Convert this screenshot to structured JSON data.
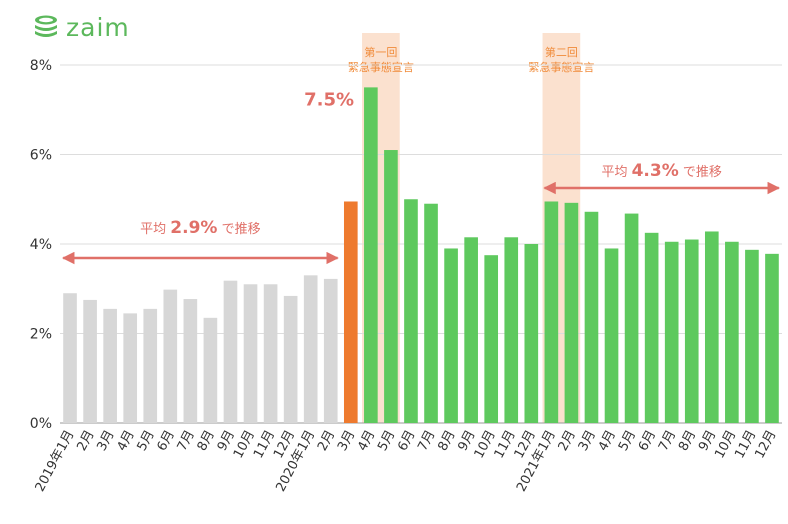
{
  "brand": {
    "name": "zaim",
    "logo_icon": "stacked-coins-icon"
  },
  "colors": {
    "pre": "#d7d7d7",
    "march2020": "#ee7a2e",
    "post": "#5ec95e",
    "emergency_band": "#fbe1cf",
    "emergency_text": "#f08b3a",
    "avg_arrow": "#e07068",
    "axis_text": "#333333",
    "grid": "#dddddd"
  },
  "chart_data": {
    "type": "bar",
    "categories": [
      "2019年1月",
      "2月",
      "3月",
      "4月",
      "5月",
      "6月",
      "7月",
      "8月",
      "9月",
      "10月",
      "11月",
      "12月",
      "2020年1月",
      "2月",
      "3月",
      "4月",
      "5月",
      "6月",
      "7月",
      "8月",
      "9月",
      "10月",
      "11月",
      "12月",
      "2021年1月",
      "2月",
      "3月",
      "4月",
      "5月",
      "6月",
      "7月",
      "8月",
      "9月",
      "10月",
      "11月",
      "12月"
    ],
    "values": [
      2.9,
      2.75,
      2.55,
      2.45,
      2.55,
      2.98,
      2.77,
      2.35,
      3.18,
      3.1,
      3.1,
      2.84,
      3.3,
      3.22,
      4.95,
      7.5,
      6.1,
      5.0,
      4.9,
      3.9,
      4.15,
      3.75,
      4.15,
      4.0,
      4.95,
      4.92,
      4.72,
      3.9,
      4.68,
      4.25,
      4.05,
      4.1,
      4.28,
      4.05,
      3.87,
      3.78
    ],
    "ylim": [
      0,
      8
    ],
    "yticks": [
      "0%",
      "2%",
      "4%",
      "6%",
      "8%"
    ],
    "yticks_values": [
      0,
      2,
      4,
      6,
      8
    ],
    "grid": true,
    "peak_label": "7.5%",
    "emergency_periods": [
      {
        "label_line1": "第一回",
        "label_line2": "緊急事態宣言",
        "category_start": 15,
        "category_end": 16
      },
      {
        "label_line1": "第二回",
        "label_line2": "緊急事態宣言",
        "category_start": 24,
        "category_end": 25
      }
    ],
    "averages": [
      {
        "label_prefix": "平均",
        "value_text": "2.9%",
        "label_suffix": "で推移",
        "category_start": 0,
        "category_end": 13
      },
      {
        "label_prefix": "平均",
        "value_text": "4.3%",
        "label_suffix": "で推移",
        "category_start": 24,
        "category_end": 35
      }
    ]
  }
}
